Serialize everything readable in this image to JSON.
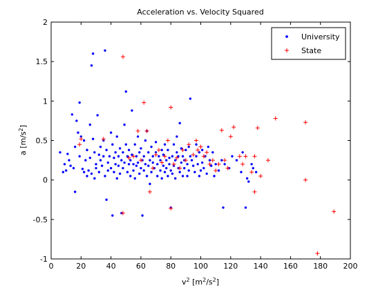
{
  "chart_data": {
    "type": "scatter",
    "title": "Acceleration vs. Velocity Squared",
    "xlabel": {
      "base": "v",
      "sup": "2",
      "unit_pre": " [m",
      "unit_sup": "2",
      "unit_mid": "/s",
      "unit_sup2": "2",
      "unit_post": "]"
    },
    "ylabel": {
      "base": "a [m/s",
      "sup": "2",
      "post": "]"
    },
    "xlim": [
      0,
      200
    ],
    "ylim": [
      -1,
      2
    ],
    "xticks": [
      "0",
      "20",
      "40",
      "60",
      "80",
      "100",
      "120",
      "140",
      "160",
      "180",
      "200"
    ],
    "yticks": [
      "-1",
      "-0.5",
      "0",
      "0.5",
      "1",
      "1.5",
      "2"
    ],
    "xtick_values": [
      0,
      20,
      40,
      60,
      80,
      100,
      120,
      140,
      160,
      180,
      200
    ],
    "ytick_values": [
      -1,
      -0.5,
      0,
      0.5,
      1,
      1.5,
      2
    ],
    "grid": false,
    "legend_position": "top-right",
    "series": [
      {
        "name": "University",
        "marker": "dot",
        "color": "#0000ff",
        "points": [
          [
            6,
            0.35
          ],
          [
            8,
            0.1
          ],
          [
            9,
            0.2
          ],
          [
            10,
            0.12
          ],
          [
            11,
            0.33
          ],
          [
            12,
            0.25
          ],
          [
            13,
            0.18
          ],
          [
            14,
            0.83
          ],
          [
            15,
            0.15
          ],
          [
            16,
            0.42
          ],
          [
            16,
            -0.15
          ],
          [
            17,
            0.75
          ],
          [
            18,
            0.6
          ],
          [
            19,
            0.3
          ],
          [
            19,
            0.98
          ],
          [
            20,
            0.55
          ],
          [
            21,
            0.14
          ],
          [
            22,
            0.5
          ],
          [
            22,
            0.1
          ],
          [
            23,
            0.25
          ],
          [
            24,
            0.38
          ],
          [
            24,
            0.05
          ],
          [
            25,
            0.12
          ],
          [
            26,
            0.28
          ],
          [
            26,
            0.7
          ],
          [
            27,
            1.45
          ],
          [
            27,
            0.08
          ],
          [
            28,
            1.6
          ],
          [
            28,
            0.52
          ],
          [
            29,
            0.35
          ],
          [
            29,
            0.02
          ],
          [
            30,
            0.2
          ],
          [
            30,
            0.15
          ],
          [
            31,
            0.82
          ],
          [
            32,
            0.32
          ],
          [
            32,
            0.1
          ],
          [
            33,
            0.25
          ],
          [
            33,
            0.42
          ],
          [
            34,
            0.18
          ],
          [
            35,
            0.5
          ],
          [
            35,
            0.3
          ],
          [
            36,
            1.64
          ],
          [
            36,
            0.05
          ],
          [
            37,
            0.38
          ],
          [
            37,
            -0.25
          ],
          [
            38,
            0.22
          ],
          [
            38,
            0.12
          ],
          [
            39,
            0.3
          ],
          [
            40,
            0.15
          ],
          [
            40,
            0.6
          ],
          [
            41,
            0.45
          ],
          [
            41,
            -0.45
          ],
          [
            42,
            0.28
          ],
          [
            42,
            0.1
          ],
          [
            43,
            0.35
          ],
          [
            43,
            0.2
          ],
          [
            44,
            0.55
          ],
          [
            44,
            0.02
          ],
          [
            45,
            0.3
          ],
          [
            45,
            0.18
          ],
          [
            46,
            0.4
          ],
          [
            46,
            0.08
          ],
          [
            47,
            0.25
          ],
          [
            47,
            -0.42
          ],
          [
            48,
            0.35
          ],
          [
            48,
            0.15
          ],
          [
            49,
            0.7
          ],
          [
            49,
            0.22
          ],
          [
            50,
            1.12
          ],
          [
            50,
            0.45
          ],
          [
            51,
            0.3
          ],
          [
            51,
            0.1
          ],
          [
            52,
            0.38
          ],
          [
            52,
            0.2
          ],
          [
            53,
            0.25
          ],
          [
            53,
            0.05
          ],
          [
            54,
            0.88
          ],
          [
            54,
            0.32
          ],
          [
            55,
            0.2
          ],
          [
            55,
            0.12
          ],
          [
            56,
            0.45
          ],
          [
            56,
            0.02
          ],
          [
            57,
            0.3
          ],
          [
            57,
            0.18
          ],
          [
            58,
            0.55
          ],
          [
            58,
            0.22
          ],
          [
            59,
            0.35
          ],
          [
            59,
            0.08
          ],
          [
            60,
            0.4
          ],
          [
            60,
            0.15
          ],
          [
            61,
            0.25
          ],
          [
            61,
            -0.45
          ],
          [
            62,
            0.3
          ],
          [
            62,
            0.12
          ],
          [
            63,
            0.5
          ],
          [
            63,
            0.2
          ],
          [
            64,
            0.62
          ],
          [
            64,
            0.05
          ],
          [
            65,
            0.35
          ],
          [
            65,
            0.18
          ],
          [
            66,
            0.25
          ],
          [
            66,
            -0.05
          ],
          [
            67,
            0.42
          ],
          [
            67,
            0.1
          ],
          [
            68,
            0.3
          ],
          [
            68,
            0.22
          ],
          [
            69,
            0.15
          ],
          [
            70,
            0.48
          ],
          [
            70,
            0.35
          ],
          [
            71,
            0.2
          ],
          [
            71,
            0.05
          ],
          [
            72,
            0.3
          ],
          [
            73,
            0.12
          ],
          [
            73,
            0.25
          ],
          [
            74,
            0.38
          ],
          [
            74,
            0.02
          ],
          [
            75,
            0.18
          ],
          [
            75,
            0.32
          ],
          [
            76,
            0.1
          ],
          [
            76,
            0.45
          ],
          [
            77,
            0.25
          ],
          [
            77,
            0.15
          ],
          [
            78,
            0.38
          ],
          [
            78,
            0.05
          ],
          [
            79,
            0.28
          ],
          [
            79,
            0.2
          ],
          [
            80,
            0.12
          ],
          [
            80,
            -0.35
          ],
          [
            81,
            0.3
          ],
          [
            81,
            0.08
          ],
          [
            82,
            0.45
          ],
          [
            82,
            0.18
          ],
          [
            83,
            0.25
          ],
          [
            83,
            0.02
          ],
          [
            84,
            0.35
          ],
          [
            84,
            0.55
          ],
          [
            85,
            0.15
          ],
          [
            85,
            0.3
          ],
          [
            86,
            0.72
          ],
          [
            86,
            0.1
          ],
          [
            87,
            0.4
          ],
          [
            87,
            0.22
          ],
          [
            88,
            0.05
          ],
          [
            88,
            0.3
          ],
          [
            89,
            0.25
          ],
          [
            89,
            0.15
          ],
          [
            90,
            0.38
          ],
          [
            91,
            0.2
          ],
          [
            91,
            0.05
          ],
          [
            92,
            0.42
          ],
          [
            92,
            0.12
          ],
          [
            93,
            1.03
          ],
          [
            93,
            0.3
          ],
          [
            94,
            0.25
          ],
          [
            95,
            0.18
          ],
          [
            96,
            0.1
          ],
          [
            97,
            0.3
          ],
          [
            97,
            0.45
          ],
          [
            98,
            0.2
          ],
          [
            99,
            0.35
          ],
          [
            99,
            0.05
          ],
          [
            100,
            0.12
          ],
          [
            101,
            0.22
          ],
          [
            101,
            0.38
          ],
          [
            102,
            0.15
          ],
          [
            103,
            0.3
          ],
          [
            104,
            0.08
          ],
          [
            105,
            0.42
          ],
          [
            106,
            0.25
          ],
          [
            107,
            0.18
          ],
          [
            108,
            0.35
          ],
          [
            109,
            0.05
          ],
          [
            110,
            0.2
          ],
          [
            112,
            0.12
          ],
          [
            114,
            0.25
          ],
          [
            115,
            -0.35
          ],
          [
            116,
            0.2
          ],
          [
            119,
            0.15
          ],
          [
            121,
            0.3
          ],
          [
            124,
            0.25
          ],
          [
            127,
            0.1
          ],
          [
            128,
            0.35
          ],
          [
            130,
            -0.35
          ],
          [
            131,
            0.02
          ],
          [
            132,
            -0.02
          ],
          [
            134,
            0.2
          ],
          [
            135,
            0.15
          ],
          [
            137,
            0.1
          ]
        ]
      },
      {
        "name": "State",
        "marker": "plus",
        "color": "#ff0000",
        "points": [
          [
            19,
            0.45
          ],
          [
            20,
            0.52
          ],
          [
            35,
            0.52
          ],
          [
            48,
            1.56
          ],
          [
            48,
            -0.42
          ],
          [
            52,
            0.28
          ],
          [
            55,
            0.3
          ],
          [
            58,
            0.62
          ],
          [
            60,
            0.25
          ],
          [
            62,
            0.98
          ],
          [
            64,
            0.62
          ],
          [
            66,
            -0.15
          ],
          [
            68,
            0.15
          ],
          [
            70,
            0.32
          ],
          [
            72,
            0.38
          ],
          [
            74,
            0.22
          ],
          [
            76,
            0.3
          ],
          [
            78,
            0.5
          ],
          [
            80,
            0.92
          ],
          [
            80,
            -0.36
          ],
          [
            82,
            0.2
          ],
          [
            84,
            0.28
          ],
          [
            86,
            0.15
          ],
          [
            88,
            0.38
          ],
          [
            90,
            0.25
          ],
          [
            92,
            0.45
          ],
          [
            95,
            0.32
          ],
          [
            97,
            0.5
          ],
          [
            98,
            0.38
          ],
          [
            100,
            0.42
          ],
          [
            102,
            0.3
          ],
          [
            104,
            0.35
          ],
          [
            106,
            0.2
          ],
          [
            108,
            0.25
          ],
          [
            110,
            0.12
          ],
          [
            112,
            0.2
          ],
          [
            114,
            0.63
          ],
          [
            116,
            0.25
          ],
          [
            118,
            0.15
          ],
          [
            120,
            0.55
          ],
          [
            122,
            0.67
          ],
          [
            126,
            0.3
          ],
          [
            128,
            0.2
          ],
          [
            130,
            0.3
          ],
          [
            134,
            0.1
          ],
          [
            136,
            0.3
          ],
          [
            136,
            -0.15
          ],
          [
            138,
            0.66
          ],
          [
            140,
            0.05
          ],
          [
            145,
            0.25
          ],
          [
            150,
            0.78
          ],
          [
            170,
            0.73
          ],
          [
            170,
            0.0
          ],
          [
            178,
            -0.93
          ],
          [
            189,
            -0.4
          ]
        ]
      }
    ]
  }
}
